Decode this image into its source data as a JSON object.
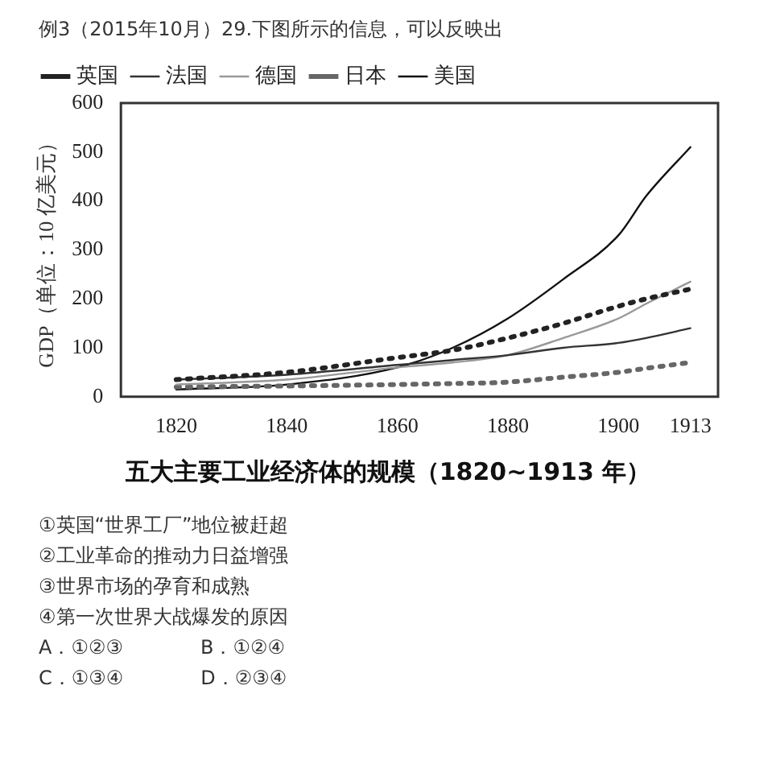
{
  "chart_data": {
    "type": "line",
    "subtitle": "例3（2015年10月）29.下图所示的信息，可以反映出",
    "title": "五大主要工业经济体的规模（1820~1913 年）",
    "ylabel": "GDP（单位：10 亿美元）",
    "x": [
      1820,
      1840,
      1860,
      1870,
      1880,
      1890,
      1900,
      1905,
      1913
    ],
    "series": [
      {
        "name": "英国",
        "color": "#222222",
        "line_style": "dotted",
        "values": [
          35,
          50,
          80,
          95,
          120,
          150,
          185,
          200,
          220
        ]
      },
      {
        "name": "法国",
        "color": "#333333",
        "line_style": "solid",
        "values": [
          35,
          45,
          65,
          75,
          85,
          100,
          110,
          120,
          140
        ]
      },
      {
        "name": "德国",
        "color": "#999999",
        "line_style": "solid",
        "values": [
          25,
          35,
          60,
          70,
          85,
          120,
          160,
          190,
          235
        ]
      },
      {
        "name": "日本",
        "color": "#666666",
        "line_style": "dotted",
        "values": [
          20,
          22,
          25,
          27,
          30,
          40,
          50,
          58,
          70
        ]
      },
      {
        "name": "美国",
        "color": "#111111",
        "line_style": "solid",
        "values": [
          15,
          25,
          60,
          100,
          160,
          240,
          330,
          410,
          510
        ]
      }
    ],
    "xlim": [
      1810,
      1918
    ],
    "xticks": [
      1820,
      1840,
      1860,
      1880,
      1900,
      1913
    ],
    "ylim": [
      0,
      600
    ],
    "yticks": [
      0,
      100,
      200,
      300,
      400,
      500,
      600
    ],
    "grid": false,
    "legend": "top left",
    "marker": "none",
    "annotations": [
      "①英国“世界工厂”地位被赶超",
      "②工业革命的推动力日益增强",
      "③世界市场的孕育和成熟",
      "④第一次世界大战爆发的原因",
      "A．①②③　　　　B．①②④",
      "C．①③④　　　　D．②③④"
    ]
  }
}
